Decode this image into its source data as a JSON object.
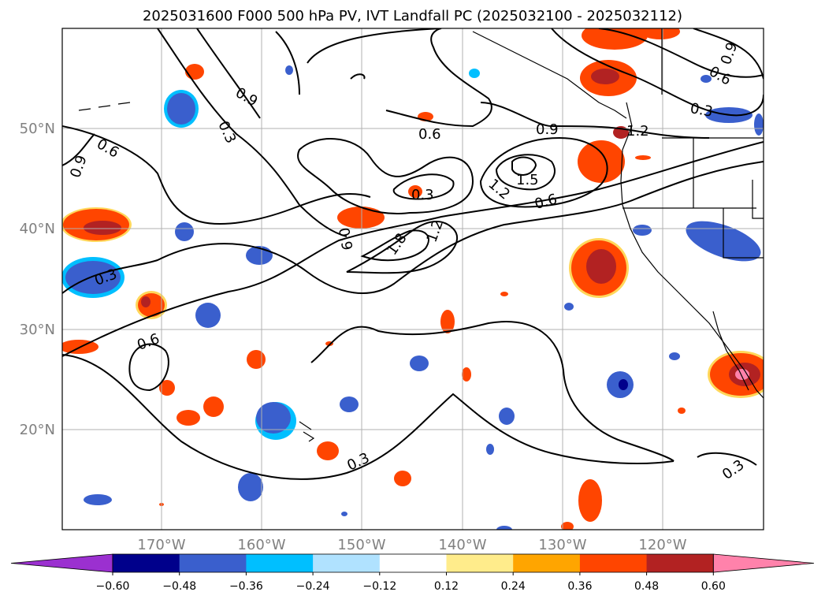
{
  "title": "2025031600 F000 500 hPa PV, IVT Landfall PC (2025032100 - 2025032112)",
  "lat_ticks": [
    "20°N",
    "30°N",
    "40°N",
    "50°N"
  ],
  "lon_ticks": [
    "170°W",
    "160°W",
    "150°W",
    "140°W",
    "130°W",
    "120°W"
  ],
  "contour_labels": [
    "0.9",
    "0.3",
    "0.6",
    "0.9",
    "0.6",
    "0.9",
    "1.2",
    "1.5",
    "1.2",
    "0.6",
    "0.3",
    "0.9",
    "1.8",
    "1.2",
    "0.3",
    "0.6",
    "0.9",
    "0.3",
    "0.6",
    "0.3",
    "0.3"
  ],
  "colorbar": {
    "ticks": [
      "−0.60",
      "−0.48",
      "−0.36",
      "−0.24",
      "−0.12",
      "0.12",
      "0.24",
      "0.36",
      "0.48",
      "0.60"
    ],
    "colors": [
      "#9b30d0",
      "#00008b",
      "#3a5fcd",
      "#00bfff",
      "#b0e2ff",
      "#ffffff",
      "#ffec8b",
      "#ffa500",
      "#ff4500",
      "#b22222",
      "#ff82ab"
    ]
  }
}
